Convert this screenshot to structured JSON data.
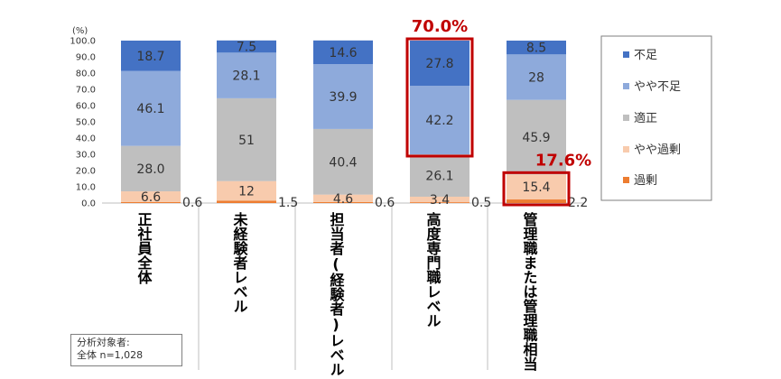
{
  "chart_data": {
    "type": "bar",
    "stacked": true,
    "unit_label": "(%)",
    "ylim": [
      0,
      100
    ],
    "yticks": [
      "0.0",
      "10.0",
      "20.0",
      "30.0",
      "40.0",
      "50.0",
      "60.0",
      "70.0",
      "80.0",
      "90.0",
      "100.0"
    ],
    "categories": [
      "正社員全体",
      "未経験者レベル",
      "担当者(経験者)レベル",
      "高度専門職レベル",
      "管理職または管理職相当"
    ],
    "series": [
      {
        "name": "過剰",
        "color": "#ed7d31",
        "values": [
          0.6,
          1.5,
          0.6,
          0.5,
          2.2
        ],
        "labels": [
          "0.6",
          "1.5",
          "0.6",
          "0.5",
          "2.2"
        ]
      },
      {
        "name": "やや過剰",
        "color": "#f8cbad",
        "values": [
          6.6,
          12,
          4.6,
          3.4,
          15.4
        ],
        "labels": [
          "6.6",
          "12",
          "4.6",
          "3.4",
          "15.4"
        ]
      },
      {
        "name": "適正",
        "color": "#bfbfbf",
        "values": [
          28.0,
          51,
          40.4,
          26.1,
          45.9
        ],
        "labels": [
          "28.0",
          "51",
          "40.4",
          "26.1",
          "45.9"
        ]
      },
      {
        "name": "やや不足",
        "color": "#8eaadb",
        "values": [
          46.1,
          28.1,
          39.9,
          42.2,
          28
        ],
        "labels": [
          "46.1",
          "28.1",
          "39.9",
          "42.2",
          "28"
        ]
      },
      {
        "name": "不足",
        "color": "#4472c4",
        "values": [
          18.7,
          7.5,
          14.6,
          27.8,
          8.5
        ],
        "labels": [
          "18.7",
          "7.5",
          "14.6",
          "27.8",
          "8.5"
        ]
      }
    ],
    "legend_order": [
      "不足",
      "やや不足",
      "適正",
      "やや過剰",
      "過剰"
    ],
    "legend_position": "right",
    "highlights": [
      {
        "category_index": 3,
        "series": [
          "やや不足",
          "不足"
        ],
        "label": "70.0%"
      },
      {
        "category_index": 4,
        "series": [
          "やや過剰",
          "過剰"
        ],
        "label": "17.6%"
      }
    ],
    "highlight_color": "#c00000"
  },
  "note": {
    "line1": "分析対象者:",
    "line2": "全体 n=1,028"
  }
}
